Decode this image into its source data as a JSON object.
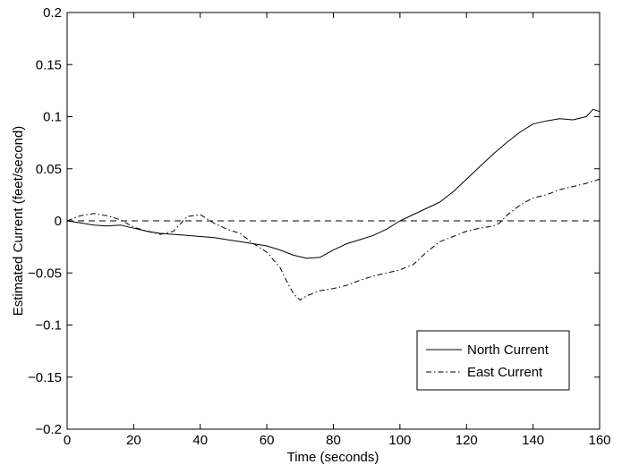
{
  "chart_data": {
    "type": "line",
    "title": "",
    "xlabel": "Time (seconds)",
    "ylabel": "Estimated Current (feet/second)",
    "xlim": [
      0,
      160
    ],
    "ylim": [
      -0.2,
      0.2
    ],
    "x_ticks": [
      0,
      20,
      40,
      60,
      80,
      100,
      120,
      140,
      160
    ],
    "x_tick_labels": [
      "0",
      "20",
      "40",
      "60",
      "80",
      "100",
      "120",
      "140",
      "160"
    ],
    "y_ticks": [
      -0.2,
      -0.15,
      -0.1,
      -0.05,
      0,
      0.05,
      0.1,
      0.15,
      0.2
    ],
    "y_tick_labels": [
      "−0.2",
      "−0.15",
      "−0.1",
      "−0.05",
      "0",
      "0.05",
      "0.1",
      "0.15",
      "0.2"
    ],
    "grid": false,
    "legend_position": "bottom-right",
    "reference_line": {
      "y": 0,
      "style": "dashed"
    },
    "series": [
      {
        "name": "North Current",
        "style": "solid",
        "color": "#000000",
        "x": [
          0,
          4,
          8,
          12,
          16,
          20,
          24,
          28,
          32,
          36,
          40,
          44,
          48,
          52,
          56,
          60,
          64,
          68,
          72,
          76,
          80,
          84,
          88,
          92,
          96,
          100,
          104,
          108,
          112,
          116,
          120,
          124,
          128,
          132,
          136,
          140,
          144,
          148,
          152,
          156,
          158,
          160
        ],
        "y": [
          0.0,
          -0.002,
          -0.004,
          -0.005,
          -0.004,
          -0.007,
          -0.01,
          -0.012,
          -0.013,
          -0.014,
          -0.015,
          -0.016,
          -0.018,
          -0.02,
          -0.022,
          -0.024,
          -0.028,
          -0.033,
          -0.036,
          -0.035,
          -0.028,
          -0.022,
          -0.018,
          -0.014,
          -0.008,
          0.0,
          0.006,
          0.012,
          0.018,
          0.028,
          0.04,
          0.052,
          0.064,
          0.075,
          0.085,
          0.093,
          0.096,
          0.098,
          0.097,
          0.1,
          0.107,
          0.105
        ]
      },
      {
        "name": "East Current",
        "style": "dashdot",
        "color": "#000000",
        "x": [
          0,
          4,
          8,
          12,
          16,
          20,
          24,
          28,
          32,
          36,
          40,
          44,
          48,
          52,
          56,
          60,
          64,
          66,
          68,
          70,
          72,
          76,
          80,
          84,
          88,
          92,
          96,
          100,
          104,
          108,
          112,
          116,
          120,
          124,
          128,
          130,
          132,
          136,
          140,
          144,
          148,
          152,
          156,
          160
        ],
        "y": [
          0.0,
          0.005,
          0.007,
          0.005,
          0.001,
          -0.006,
          -0.01,
          -0.013,
          -0.01,
          0.004,
          0.006,
          -0.002,
          -0.008,
          -0.012,
          -0.022,
          -0.03,
          -0.045,
          -0.058,
          -0.07,
          -0.076,
          -0.072,
          -0.067,
          -0.065,
          -0.062,
          -0.057,
          -0.053,
          -0.05,
          -0.047,
          -0.042,
          -0.03,
          -0.02,
          -0.015,
          -0.01,
          -0.007,
          -0.005,
          -0.002,
          0.005,
          0.015,
          0.022,
          0.025,
          0.03,
          0.033,
          0.036,
          0.04
        ]
      }
    ]
  }
}
